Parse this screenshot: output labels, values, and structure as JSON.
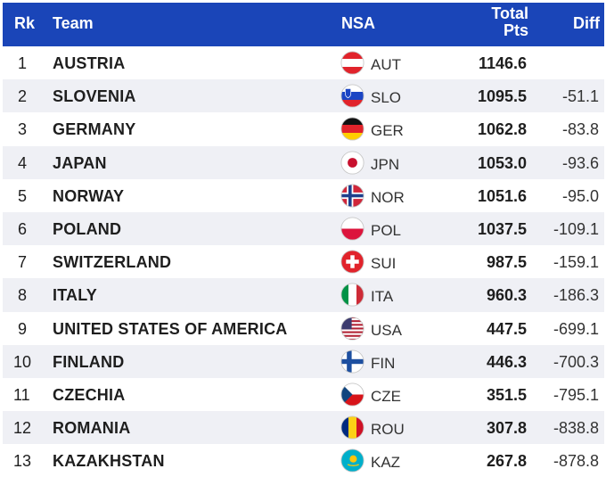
{
  "header": {
    "rank": "Rk",
    "team": "Team",
    "nsa": "NSA",
    "total_line1": "Total",
    "total_line2": "Pts",
    "diff": "Diff"
  },
  "rows": [
    {
      "rank": "1",
      "team": "AUSTRIA",
      "code": "AUT",
      "pts": "1146.6",
      "diff": "",
      "flag": "flag-austria-icon"
    },
    {
      "rank": "2",
      "team": "SLOVENIA",
      "code": "SLO",
      "pts": "1095.5",
      "diff": "-51.1",
      "flag": "flag-slovenia-icon"
    },
    {
      "rank": "3",
      "team": "GERMANY",
      "code": "GER",
      "pts": "1062.8",
      "diff": "-83.8",
      "flag": "flag-germany-icon"
    },
    {
      "rank": "4",
      "team": "JAPAN",
      "code": "JPN",
      "pts": "1053.0",
      "diff": "-93.6",
      "flag": "flag-japan-icon"
    },
    {
      "rank": "5",
      "team": "NORWAY",
      "code": "NOR",
      "pts": "1051.6",
      "diff": "-95.0",
      "flag": "flag-norway-icon"
    },
    {
      "rank": "6",
      "team": "POLAND",
      "code": "POL",
      "pts": "1037.5",
      "diff": "-109.1",
      "flag": "flag-poland-icon"
    },
    {
      "rank": "7",
      "team": "SWITZERLAND",
      "code": "SUI",
      "pts": "987.5",
      "diff": "-159.1",
      "flag": "flag-switzerland-icon"
    },
    {
      "rank": "8",
      "team": "ITALY",
      "code": "ITA",
      "pts": "960.3",
      "diff": "-186.3",
      "flag": "flag-italy-icon"
    },
    {
      "rank": "9",
      "team": "UNITED STATES OF AMERICA",
      "code": "USA",
      "pts": "447.5",
      "diff": "-699.1",
      "flag": "flag-usa-icon"
    },
    {
      "rank": "10",
      "team": "FINLAND",
      "code": "FIN",
      "pts": "446.3",
      "diff": "-700.3",
      "flag": "flag-finland-icon"
    },
    {
      "rank": "11",
      "team": "CZECHIA",
      "code": "CZE",
      "pts": "351.5",
      "diff": "-795.1",
      "flag": "flag-czechia-icon"
    },
    {
      "rank": "12",
      "team": "ROMANIA",
      "code": "ROU",
      "pts": "307.8",
      "diff": "-838.8",
      "flag": "flag-romania-icon"
    },
    {
      "rank": "13",
      "team": "KAZAKHSTAN",
      "code": "KAZ",
      "pts": "267.8",
      "diff": "-878.8",
      "flag": "flag-kazakhstan-icon"
    }
  ],
  "colors": {
    "header_bg": "#1a45b8",
    "row_alt_bg": "#eff0f5"
  }
}
